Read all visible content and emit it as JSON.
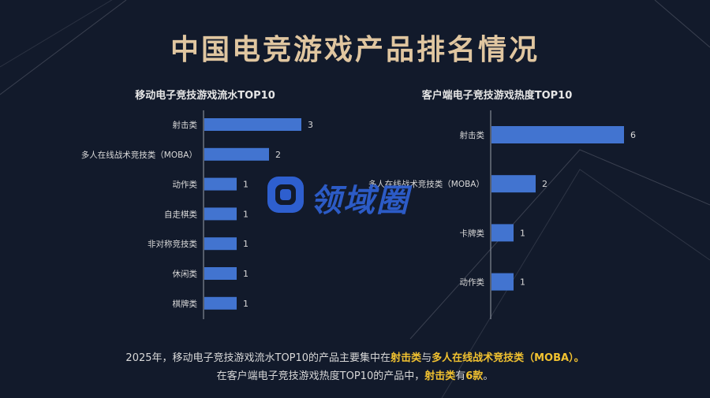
{
  "title": "中国电竞游戏产品排名情况",
  "watermark_text": "领域圈",
  "colors": {
    "bar": "#4274d0",
    "title": "#e0c6a0",
    "highlight": "#f2c230",
    "background": "#121a2b"
  },
  "chart_data": [
    {
      "type": "bar",
      "orientation": "horizontal",
      "title": "移动电子竞技游戏流水TOP10",
      "categories": [
        "射击类",
        "多人在线战术竞技类（MOBA）",
        "动作类",
        "自走棋类",
        "非对称竞技类",
        "休闲类",
        "棋牌类"
      ],
      "values": [
        3,
        2,
        1,
        1,
        1,
        1,
        1
      ],
      "xlim": [
        0,
        3
      ]
    },
    {
      "type": "bar",
      "orientation": "horizontal",
      "title": "客户端电子竞技游戏热度TOP10",
      "categories": [
        "射击类",
        "多人在线战术竞技类（MOBA）",
        "卡牌类",
        "动作类"
      ],
      "values": [
        6,
        2,
        1,
        1
      ],
      "xlim": [
        0,
        6
      ]
    }
  ],
  "footer": {
    "line1_a": "2025年，移动电子竞技游戏流水TOP10的产品主要集中在",
    "line1_hl1": "射击类",
    "line1_b": "与",
    "line1_hl2": "多人在线战术竞技类（MOBA）",
    "line1_c": "。",
    "line2_a": "在客户端电子竞技游戏热度TOP10的产品中，",
    "line2_hl1": "射击类",
    "line2_b": "有",
    "line2_hl2": "6款",
    "line2_c": "。"
  }
}
